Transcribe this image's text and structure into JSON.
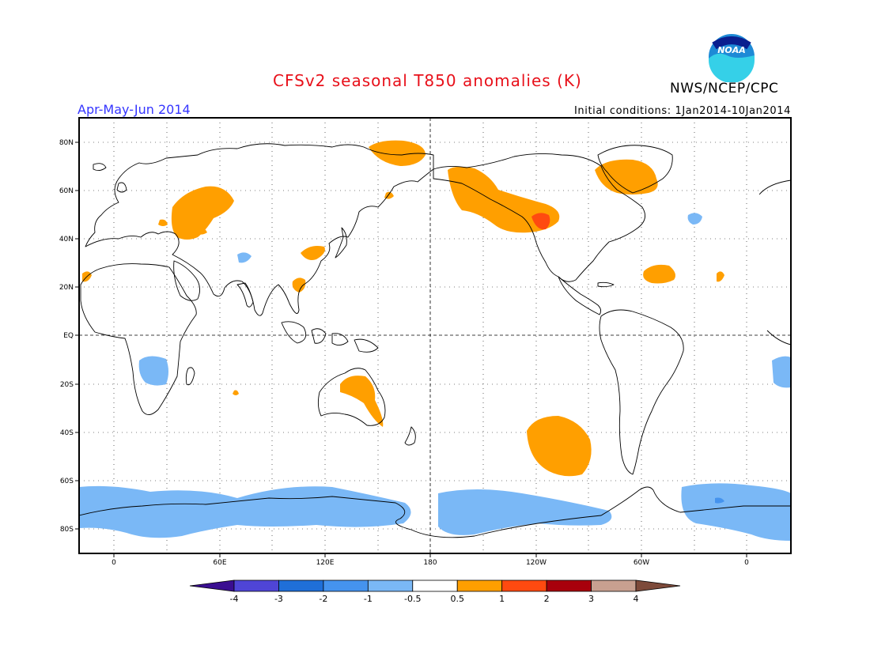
{
  "header": {
    "title": "CFSv2 seasonal T850 anomalies (K)",
    "season": "Apr-May-Jun 2014",
    "initial_conditions": "Initial conditions: 1Jan2014-10Jan2014",
    "agency": "NWS/NCEP/CPC",
    "logo_text": "NOAA"
  },
  "map": {
    "lat_labels": [
      "80N",
      "60N",
      "40N",
      "20N",
      "EQ",
      "20S",
      "40S",
      "60S",
      "80S"
    ],
    "lon_labels": [
      "0",
      "60E",
      "120E",
      "180",
      "120W",
      "60W",
      "0"
    ]
  },
  "colorbar": {
    "labels": [
      "-4",
      "-3",
      "-2",
      "-1",
      "-0.5",
      "0.5",
      "1",
      "2",
      "3",
      "4"
    ],
    "colors": [
      "#3a0e91",
      "#4f45d6",
      "#1f6fd8",
      "#4593ee",
      "#7ab8f6",
      "#ffffff",
      "#ff9f00",
      "#ff4a10",
      "#a8000c",
      "#c8a090",
      "#7d4a3a"
    ]
  },
  "colors": {
    "warm": "#ff9f00",
    "warmer": "#ff4a10",
    "cool": "#7ab8f6",
    "cooler": "#4593ee",
    "coastline": "#000000"
  }
}
